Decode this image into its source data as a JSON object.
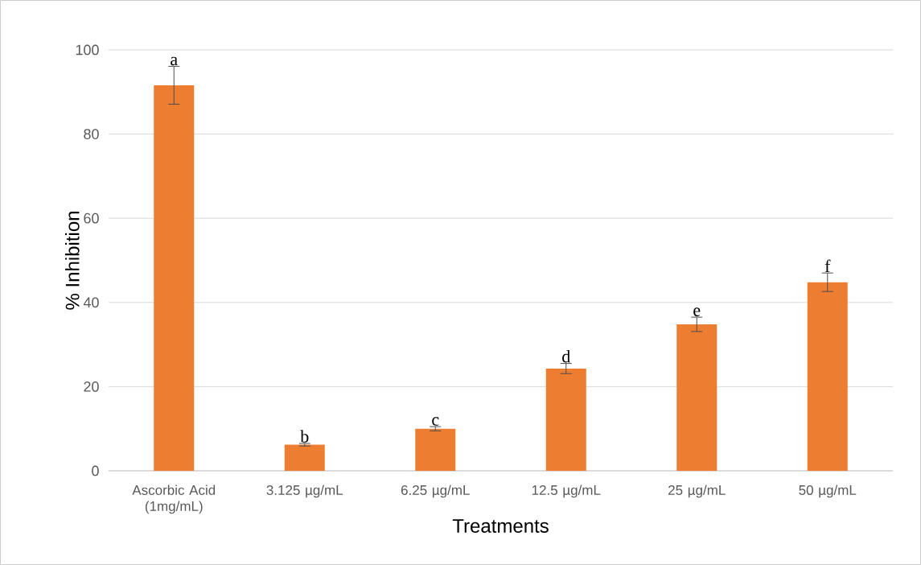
{
  "chart_data": {
    "type": "bar",
    "xlabel": "Treatments",
    "ylabel": "% Inhibition",
    "categories": [
      "Ascorbic Acid (1mg/mL)",
      "3.125 µg/mL",
      "6.25 µg/mL",
      "12.5 µg/mL",
      "25 µg/mL",
      "50 µg/mL"
    ],
    "values": [
      91.6,
      6.2,
      10.0,
      24.3,
      34.8,
      44.8
    ],
    "errors": [
      4.5,
      0.3,
      0.5,
      1.2,
      1.7,
      2.2
    ],
    "color": "#ed7d31",
    "ylim": [
      0,
      100
    ],
    "yticks": [
      0,
      20,
      40,
      60,
      80,
      100
    ],
    "grid": "y",
    "annotations": [
      "a",
      "b",
      "c",
      "d",
      "e",
      "f"
    ]
  }
}
